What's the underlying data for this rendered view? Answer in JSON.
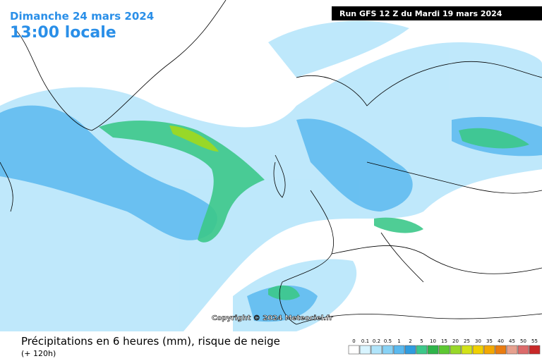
{
  "header": {
    "date": "Dimanche 24 mars 2024",
    "time": "13:00 locale",
    "run": "Run GFS 12 Z du Mardi 19 mars 2024"
  },
  "copyright": "Copyright © 2024 Meteociel.fr",
  "footer": {
    "title": "Précipitations en 6 heures (mm), risque de neige",
    "lead": "(+ 120h)"
  },
  "legend": {
    "labels": [
      0,
      0.1,
      0.2,
      0.5,
      1,
      2,
      5,
      10,
      15,
      20,
      25,
      30,
      35,
      40,
      45,
      50,
      55
    ],
    "colors": [
      "#ffffff",
      "#d8f4ff",
      "#b0e4fa",
      "#88d2f5",
      "#5ab9ef",
      "#2f9ce0",
      "#3cc88a",
      "#2eb44a",
      "#5cc832",
      "#98d828",
      "#d2e218",
      "#f0d000",
      "#f3a800",
      "#ea7c10",
      "#e6a08e",
      "#dc6a6a",
      "#c82828"
    ]
  }
}
